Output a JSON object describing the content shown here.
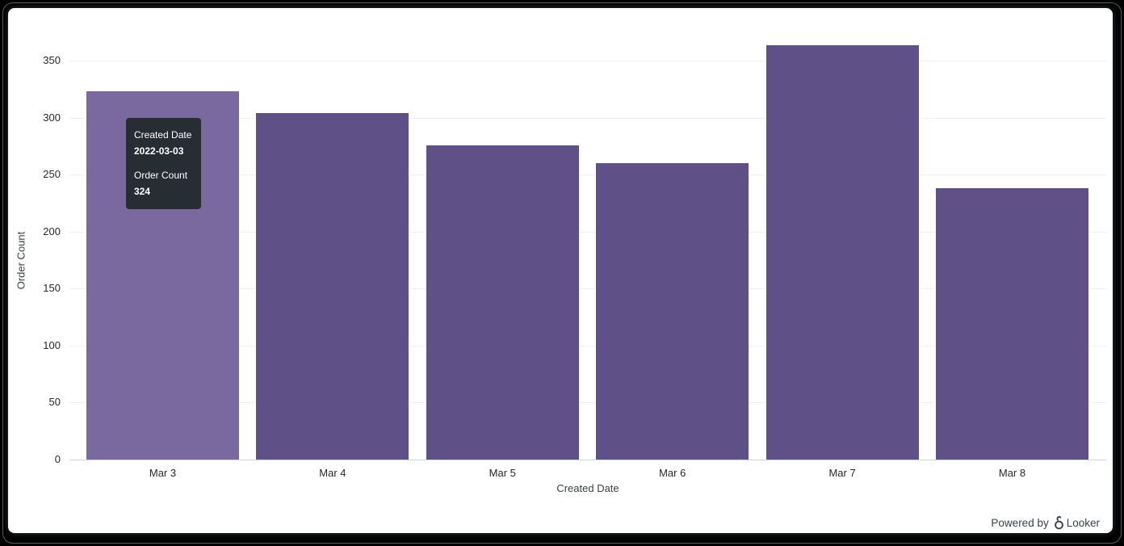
{
  "chart_data": {
    "type": "bar",
    "title": "",
    "xlabel": "Created Date",
    "ylabel": "Order Count",
    "categories": [
      "Mar 3",
      "Mar 4",
      "Mar 5",
      "Mar 6",
      "Mar 7",
      "Mar 8"
    ],
    "values": [
      324,
      305,
      276,
      261,
      364,
      239
    ],
    "yticks": [
      0,
      50,
      100,
      150,
      200,
      250,
      300,
      350
    ],
    "ylim": [
      0,
      375
    ],
    "grid": true,
    "legend": "none",
    "bar_color": "#5F5187",
    "hover_bar_color": "#79699F",
    "hovered_index": 0,
    "gridline_color": "#f0f0f0",
    "axis_line_color": "#ccd6eb"
  },
  "tooltip": {
    "background_color": "#262D33",
    "field1_label": "Created Date",
    "field1_value": "2022-03-03",
    "field2_label": "Order Count",
    "field2_value": "324"
  },
  "footer": {
    "powered_by": "Powered by",
    "brand": "Looker"
  }
}
